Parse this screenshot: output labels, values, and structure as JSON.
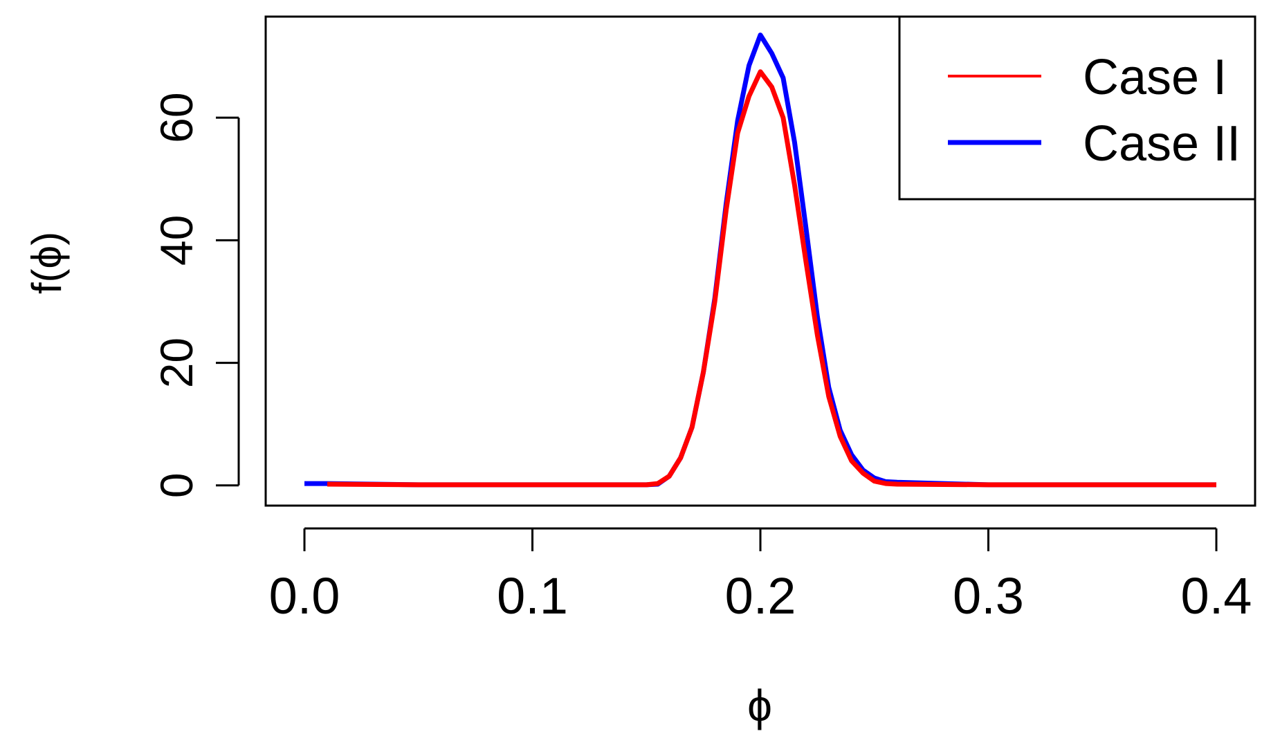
{
  "chart_data": {
    "type": "line",
    "title": "",
    "xlabel": "ϕ",
    "ylabel": "f(ϕ)",
    "xlim": [
      -0.017,
      0.417
    ],
    "ylim": [
      -3.3,
      76.5
    ],
    "xticks": [
      0.0,
      0.1,
      0.2,
      0.3,
      0.4
    ],
    "xtick_labels": [
      "0.0",
      "0.1",
      "0.2",
      "0.3",
      "0.4"
    ],
    "yticks": [
      0,
      20,
      40,
      60
    ],
    "ytick_labels": [
      "0",
      "20",
      "40",
      "60"
    ],
    "grid": false,
    "legend_position": "top-right",
    "series": [
      {
        "name": "Case II",
        "color": "#0000ff",
        "x": [
          0.0,
          0.01,
          0.05,
          0.1,
          0.15,
          0.155,
          0.16,
          0.165,
          0.17,
          0.175,
          0.18,
          0.185,
          0.19,
          0.195,
          0.2,
          0.205,
          0.21,
          0.215,
          0.22,
          0.225,
          0.23,
          0.235,
          0.24,
          0.245,
          0.25,
          0.255,
          0.26,
          0.3,
          0.35,
          0.4
        ],
        "y": [
          0.3,
          0.3,
          0.1,
          0.1,
          0.1,
          0.2,
          1.5,
          4.5,
          9.5,
          18.5,
          30.5,
          46.0,
          59.5,
          68.5,
          73.5,
          70.5,
          66.5,
          56.0,
          42.0,
          27.5,
          16.0,
          9.0,
          5.0,
          2.5,
          1.2,
          0.6,
          0.5,
          0.1,
          0.1,
          0.1
        ]
      },
      {
        "name": "Case I",
        "color": "#ff0000",
        "x": [
          0.01,
          0.05,
          0.1,
          0.15,
          0.155,
          0.16,
          0.165,
          0.17,
          0.175,
          0.18,
          0.185,
          0.19,
          0.195,
          0.2,
          0.205,
          0.21,
          0.215,
          0.22,
          0.225,
          0.23,
          0.235,
          0.24,
          0.245,
          0.25,
          0.255,
          0.26,
          0.3,
          0.35,
          0.4
        ],
        "y": [
          0.2,
          0.1,
          0.1,
          0.1,
          0.3,
          1.5,
          4.5,
          9.5,
          18.5,
          30.0,
          45.0,
          57.5,
          63.5,
          67.5,
          65.0,
          60.0,
          49.0,
          36.5,
          24.5,
          14.5,
          8.0,
          4.0,
          2.0,
          0.7,
          0.3,
          0.2,
          0.1,
          0.1,
          0.1
        ]
      }
    ],
    "legend": {
      "entries": [
        {
          "label": "Case I",
          "color": "#ff0000"
        },
        {
          "label": "Case II",
          "color": "#0000ff"
        }
      ]
    }
  }
}
